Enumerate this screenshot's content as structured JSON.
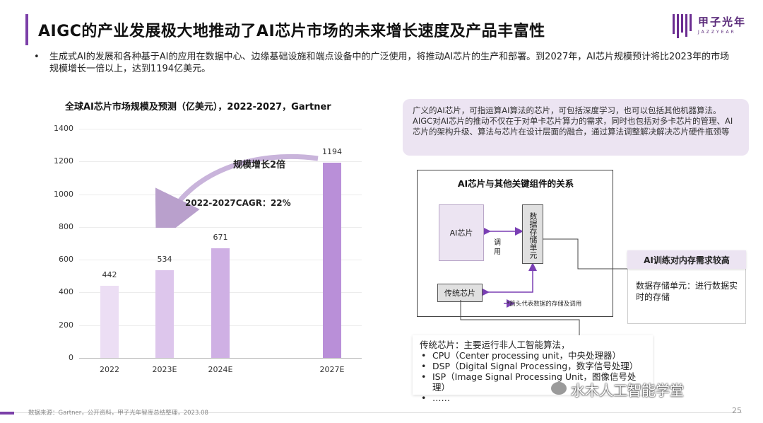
{
  "header": {
    "title": "AIGC的产业发展极大地推动了AI芯片市场的未来增长速度及产品丰富性",
    "logo_name": "甲子光年",
    "logo_sub": "JAZZYEAR"
  },
  "bullet": "生成式AI的发展和各种基于AI的应用在数据中心、边缘基础设施和端点设备中的广泛使用，将推动AI芯片的生产和部署。到2027年，AI芯片规模预计将比2023年的市场规模增长一倍以上，达到1194亿美元。",
  "chart_data": {
    "type": "bar",
    "title": "全球AI芯片市场规模及预测（亿美元），2022-2027，Gartner",
    "categories": [
      "2022",
      "2023E",
      "2024E",
      "2027E"
    ],
    "values": [
      442,
      534,
      671,
      1194
    ],
    "ylim": [
      0,
      1400
    ],
    "yticks": [
      "0",
      "200",
      "400",
      "600",
      "800",
      "1000",
      "1200",
      "1400"
    ],
    "grid": true,
    "colors": [
      "#ecdef4",
      "#ddc6ec",
      "#cfb0e4",
      "#b98fd8"
    ],
    "annotations": {
      "scale": "规模增长2倍",
      "cagr": "2022-2027CAGR：22%"
    }
  },
  "definition": "广义的AI芯片，可指运算AI算法的芯片，可包括深度学习，也可以包括其他机器算法。AIGC对AI芯片的推动不仅在于对单卡芯片算力的需求，同时也包括对多卡芯片的管理、AI芯片的架构升级、算法与芯片在设计层面的融合，通过算法调整解决解决芯片硬件瓶颈等",
  "diagram": {
    "title": "AI芯片与其他关键组件的关系",
    "ai_chip": "AI芯片",
    "memory_unit": "数据存储单元",
    "legacy_chip": "传统芯片",
    "call": "调用",
    "note": "*箭头代表数据的存储及调用"
  },
  "memory_box": {
    "header": "AI训练对内存需求较高",
    "desc": "数据存储单元：进行数据实时的存储"
  },
  "legacy_box": {
    "title": "传统芯片：主要运行非人工智能算法，",
    "items": [
      "CPU（Center processing unit，中央处理器）",
      "DSP（Digital Signal Processing，数字信号处理）",
      "ISP（Image Signal Processing Unit，图像信号处理）",
      "……"
    ]
  },
  "footer": {
    "source": "数据来源：Gartner，公开资料，甲子光年智库总结整理，2023.08",
    "page": "25",
    "wechat": "水木人工智能学堂"
  }
}
